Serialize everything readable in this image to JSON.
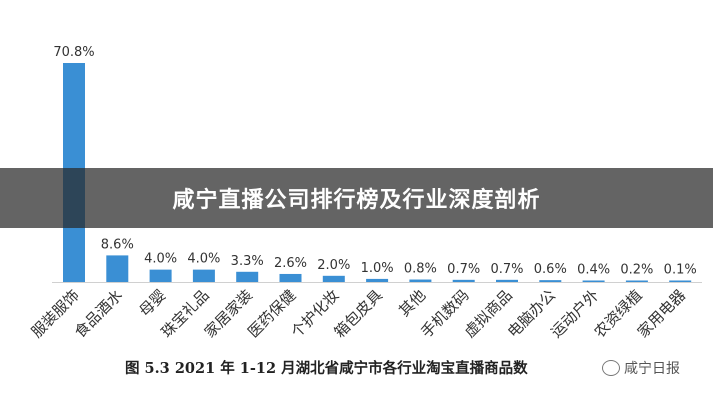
{
  "banner": {
    "title": "咸宁直播公司排行榜及行业深度剖析"
  },
  "caption": "图 5.3 2021 年 1-12 月湖北省咸宁市各行业淘宝直播商品数",
  "watermark": "咸宁日报",
  "chart_data": {
    "type": "bar",
    "title": "图 5.3 2021 年 1-12 月湖北省咸宁市各行业淘宝直播商品数",
    "categories": [
      "服装服饰",
      "食品酒水",
      "母婴",
      "珠宝礼品",
      "家居家装",
      "医药保健",
      "个护化妆",
      "箱包皮具",
      "其他",
      "手机数码",
      "虚拟商品",
      "电脑办公",
      "运动户外",
      "农资绿植",
      "家用电器"
    ],
    "values": [
      70.8,
      8.6,
      4.0,
      4.0,
      3.3,
      2.6,
      2.0,
      1.0,
      0.8,
      0.7,
      0.7,
      0.6,
      0.4,
      0.2,
      0.1
    ],
    "labels": [
      "70.8%",
      "8.6%",
      "4.0%",
      "4.0%",
      "3.3%",
      "2.6%",
      "2.0%",
      "1.0%",
      "0.8%",
      "0.7%",
      "0.7%",
      "0.6%",
      "0.4%",
      "0.2%",
      "0.1%"
    ],
    "unit": "%",
    "ylim": [
      0,
      70.8
    ],
    "grid": false,
    "bar_color": "#3a8fd4"
  }
}
